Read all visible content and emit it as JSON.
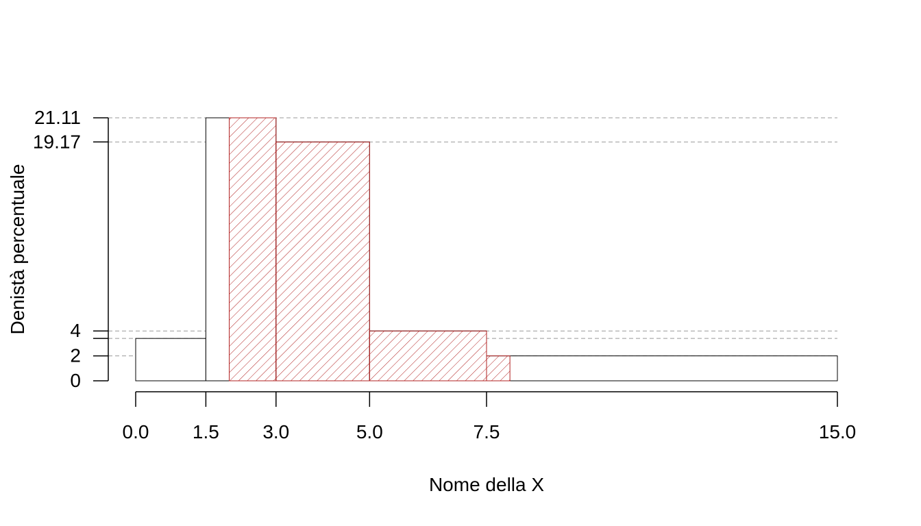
{
  "chart_data": {
    "type": "bar",
    "xlabel": "Nome della X",
    "ylabel": "Denistà percentuale",
    "xlim": [
      0,
      15
    ],
    "ylim": [
      0,
      21.11
    ],
    "x_ticks": [
      "0.0",
      "1.5",
      "3.0",
      "5.0",
      "7.5",
      "15.0"
    ],
    "y_ticks": [
      "0",
      "2",
      "4",
      "19.17",
      "21.11"
    ],
    "guide_lines": [
      21.11,
      19.17,
      4,
      3.4,
      2
    ],
    "colors": {
      "outline": "#000000",
      "highlight": "#b22222",
      "guide": "#999999"
    },
    "bars": [
      {
        "x0": 0,
        "x1": 1.5,
        "height": 3.4,
        "highlight": false
      },
      {
        "x0": 1.5,
        "x1": 3,
        "height": 21.11,
        "highlight": false
      },
      {
        "x0": 3,
        "x1": 5,
        "height": 19.17,
        "highlight": false
      },
      {
        "x0": 5,
        "x1": 7.5,
        "height": 4,
        "highlight": false
      },
      {
        "x0": 7.5,
        "x1": 15,
        "height": 2,
        "highlight": false
      }
    ],
    "highlighted_bars": [
      {
        "x0": 2,
        "x1": 3,
        "height": 21.11
      },
      {
        "x0": 3,
        "x1": 5,
        "height": 19.17
      },
      {
        "x0": 5,
        "x1": 7.5,
        "height": 4
      },
      {
        "x0": 7.5,
        "x1": 8,
        "height": 2
      }
    ]
  }
}
